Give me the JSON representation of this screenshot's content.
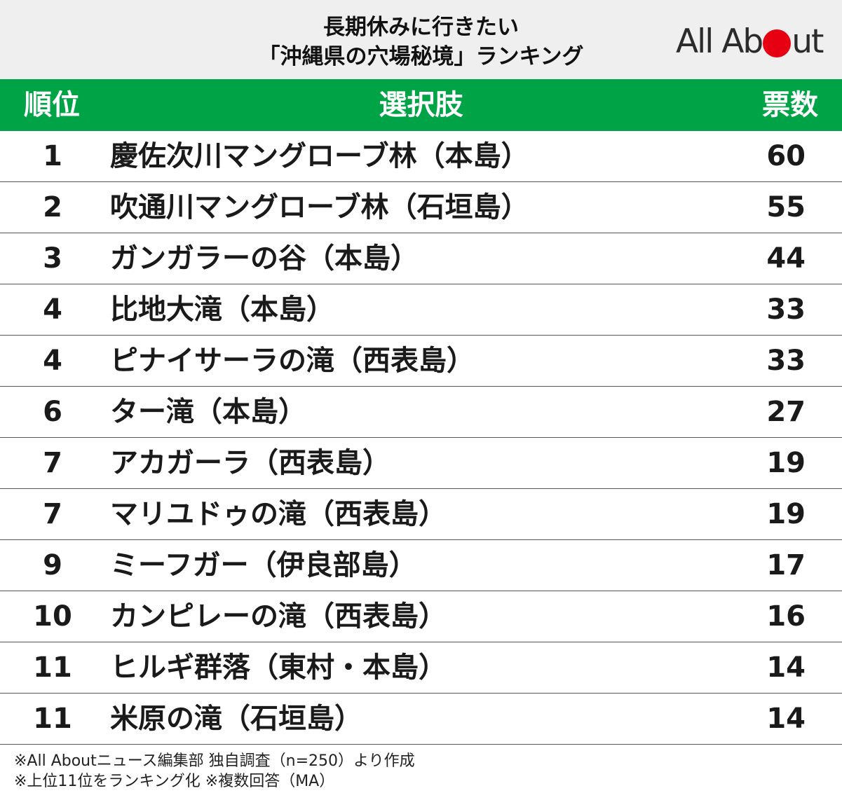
{
  "header": {
    "title_line1": "長期休みに行きたい",
    "title_line2": "「沖縄県の穴場秘境」ランキング"
  },
  "logo": {
    "text_left": "All Ab",
    "text_right": "ut",
    "dot_color": "#e60012"
  },
  "table": {
    "header_color": "#00a447",
    "columns": [
      "順位",
      "選択肢",
      "票数"
    ]
  },
  "chart_data": {
    "type": "table",
    "title": "長期休みに行きたい「沖縄県の穴場秘境」ランキング",
    "columns": [
      "順位",
      "選択肢",
      "票数"
    ],
    "rows": [
      {
        "rank": "1",
        "choice": "慶佐次川マングローブ林（本島）",
        "votes": 60
      },
      {
        "rank": "2",
        "choice": "吹通川マングローブ林（石垣島）",
        "votes": 55
      },
      {
        "rank": "3",
        "choice": "ガンガラーの谷（本島）",
        "votes": 44
      },
      {
        "rank": "4",
        "choice": "比地大滝（本島）",
        "votes": 33
      },
      {
        "rank": "4",
        "choice": "ピナイサーラの滝（西表島）",
        "votes": 33
      },
      {
        "rank": "6",
        "choice": "ター滝（本島）",
        "votes": 27
      },
      {
        "rank": "7",
        "choice": "アカガーラ（西表島）",
        "votes": 19
      },
      {
        "rank": "7",
        "choice": "マリユドゥの滝（西表島）",
        "votes": 19
      },
      {
        "rank": "9",
        "choice": "ミーフガー（伊良部島）",
        "votes": 17
      },
      {
        "rank": "10",
        "choice": "カンピレーの滝（西表島）",
        "votes": 16
      },
      {
        "rank": "11",
        "choice": "ヒルギ群落（東村・本島）",
        "votes": 14
      },
      {
        "rank": "11",
        "choice": "米原の滝（石垣島）",
        "votes": 14
      }
    ]
  },
  "footer": {
    "note1": "※All Aboutニュース編集部 独自調査（n=250）より作成",
    "note2": "※上位11位をランキング化 ※複数回答（MA）"
  }
}
